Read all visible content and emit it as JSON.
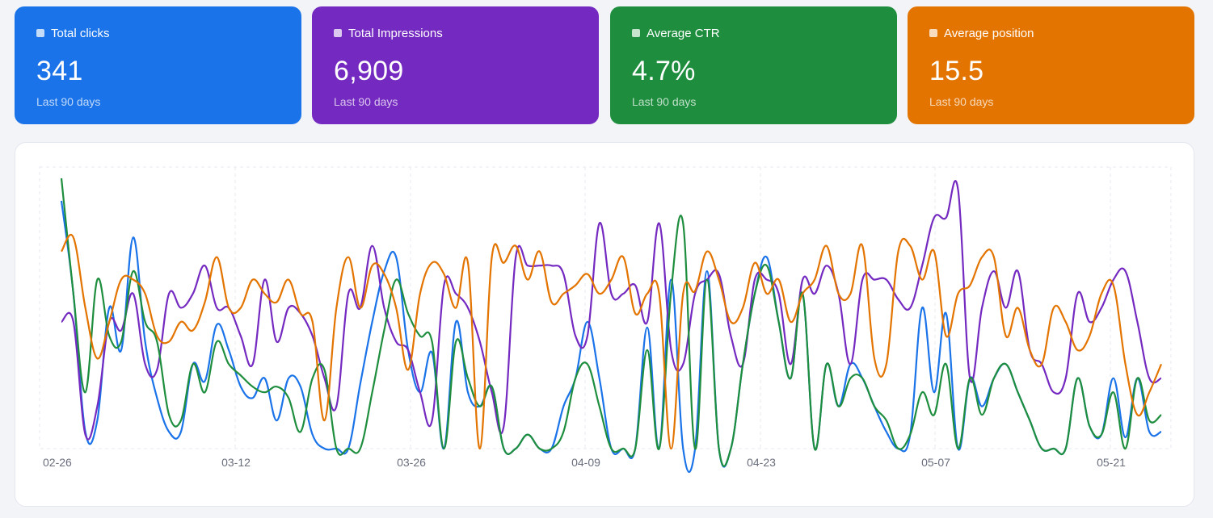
{
  "cards": [
    {
      "label": "Total clicks",
      "value": "341",
      "sub": "Last 90 days",
      "color": "#1a73e8"
    },
    {
      "label": "Total Impressions",
      "value": "6,909",
      "sub": "Last 90 days",
      "color": "#7429c0"
    },
    {
      "label": "Average CTR",
      "value": "4.7%",
      "sub": "Last 90 days",
      "color": "#1e8e3e"
    },
    {
      "label": "Average position",
      "value": "15.5",
      "sub": "Last 90 days",
      "color": "#e37400"
    }
  ],
  "chart_data": {
    "type": "line",
    "x_ticks": [
      "02-26",
      "03-12",
      "03-26",
      "04-09",
      "04-23",
      "05-07",
      "05-21"
    ],
    "grid": true,
    "series": [
      {
        "color": "#1a73e8",
        "values": [
          0.88,
          0.55,
          0.06,
          0.1,
          0.5,
          0.35,
          0.75,
          0.38,
          0.18,
          0.06,
          0.06,
          0.3,
          0.24,
          0.44,
          0.35,
          0.22,
          0.18,
          0.25,
          0.1,
          0.25,
          0.22,
          0.05,
          0.0,
          0.0,
          0.0,
          0.23,
          0.45,
          0.63,
          0.68,
          0.35,
          0.2,
          0.34,
          0.0,
          0.45,
          0.2,
          0.15,
          0.22,
          0.0,
          0.0,
          0.05,
          0.0,
          0.0,
          0.15,
          0.25,
          0.45,
          0.25,
          0.0,
          0.0,
          0.0,
          0.43,
          0.0,
          0.6,
          0.0,
          0.0,
          0.63,
          0.0,
          0.0,
          0.3,
          0.55,
          0.68,
          0.45,
          0.25,
          0.55,
          0.0,
          0.3,
          0.15,
          0.3,
          0.25,
          0.15,
          0.06,
          0.0,
          0.05,
          0.5,
          0.2,
          0.48,
          0.0,
          0.25,
          0.15,
          0.25,
          0.3,
          0.2,
          0.1,
          0.0,
          0.0,
          0.0,
          0.25,
          0.08,
          0.05,
          0.25,
          0.04,
          0.25,
          0.06,
          0.06
        ]
      },
      {
        "color": "#7429c0",
        "values": [
          0.45,
          0.45,
          0.05,
          0.15,
          0.45,
          0.42,
          0.55,
          0.3,
          0.28,
          0.55,
          0.5,
          0.55,
          0.65,
          0.5,
          0.5,
          0.4,
          0.3,
          0.6,
          0.38,
          0.5,
          0.48,
          0.4,
          0.25,
          0.15,
          0.55,
          0.5,
          0.72,
          0.5,
          0.38,
          0.35,
          0.2,
          0.1,
          0.58,
          0.55,
          0.5,
          0.38,
          0.2,
          0.08,
          0.68,
          0.65,
          0.65,
          0.65,
          0.62,
          0.4,
          0.4,
          0.8,
          0.55,
          0.55,
          0.58,
          0.45,
          0.8,
          0.35,
          0.3,
          0.55,
          0.6,
          0.62,
          0.4,
          0.3,
          0.6,
          0.6,
          0.55,
          0.3,
          0.6,
          0.55,
          0.65,
          0.55,
          0.3,
          0.6,
          0.6,
          0.6,
          0.53,
          0.5,
          0.65,
          0.82,
          0.82,
          0.92,
          0.25,
          0.5,
          0.63,
          0.5,
          0.63,
          0.35,
          0.3,
          0.2,
          0.25,
          0.55,
          0.45,
          0.5,
          0.6,
          0.63,
          0.45,
          0.25,
          0.25
        ]
      },
      {
        "color": "#1e8e3e",
        "values": [
          0.96,
          0.55,
          0.2,
          0.6,
          0.4,
          0.38,
          0.63,
          0.45,
          0.38,
          0.12,
          0.1,
          0.3,
          0.2,
          0.38,
          0.3,
          0.26,
          0.22,
          0.2,
          0.22,
          0.18,
          0.06,
          0.25,
          0.28,
          0.0,
          0.0,
          0.0,
          0.2,
          0.42,
          0.6,
          0.48,
          0.4,
          0.38,
          0.0,
          0.38,
          0.25,
          0.15,
          0.22,
          0.0,
          0.0,
          0.05,
          0.0,
          0.0,
          0.06,
          0.25,
          0.3,
          0.15,
          0.0,
          0.0,
          0.0,
          0.35,
          0.0,
          0.56,
          0.8,
          0.0,
          0.6,
          0.0,
          0.0,
          0.3,
          0.55,
          0.65,
          0.45,
          0.25,
          0.55,
          0.0,
          0.3,
          0.15,
          0.25,
          0.25,
          0.15,
          0.1,
          0.0,
          0.05,
          0.2,
          0.12,
          0.3,
          0.0,
          0.25,
          0.12,
          0.25,
          0.3,
          0.2,
          0.1,
          0.0,
          0.0,
          0.0,
          0.25,
          0.08,
          0.05,
          0.2,
          0.0,
          0.25,
          0.1,
          0.12
        ]
      },
      {
        "color": "#e37400",
        "values": [
          0.7,
          0.75,
          0.5,
          0.32,
          0.45,
          0.6,
          0.6,
          0.55,
          0.4,
          0.38,
          0.45,
          0.42,
          0.52,
          0.68,
          0.5,
          0.5,
          0.6,
          0.55,
          0.52,
          0.6,
          0.48,
          0.45,
          0.1,
          0.5,
          0.68,
          0.5,
          0.65,
          0.62,
          0.5,
          0.28,
          0.55,
          0.66,
          0.62,
          0.5,
          0.66,
          0.0,
          0.68,
          0.66,
          0.72,
          0.6,
          0.7,
          0.52,
          0.55,
          0.58,
          0.62,
          0.55,
          0.6,
          0.68,
          0.48,
          0.55,
          0.55,
          0.0,
          0.55,
          0.56,
          0.7,
          0.6,
          0.45,
          0.5,
          0.66,
          0.55,
          0.6,
          0.45,
          0.55,
          0.6,
          0.72,
          0.55,
          0.55,
          0.72,
          0.32,
          0.3,
          0.7,
          0.72,
          0.6,
          0.7,
          0.4,
          0.55,
          0.58,
          0.68,
          0.68,
          0.4,
          0.5,
          0.35,
          0.3,
          0.5,
          0.45,
          0.35,
          0.4,
          0.55,
          0.58,
          0.3,
          0.12,
          0.2,
          0.3
        ]
      }
    ]
  }
}
